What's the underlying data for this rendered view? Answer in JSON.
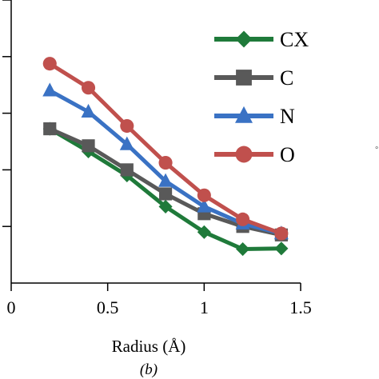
{
  "chart_data": {
    "type": "line",
    "xlabel": "Radius (Å)",
    "sublabel": "(b)",
    "x_ticks": [
      "0",
      "0.5",
      "1",
      "1.5"
    ],
    "xlim": [
      0,
      1.5
    ],
    "ylim": [
      0,
      1
    ],
    "x": [
      0.2,
      0.4,
      0.6,
      0.8,
      1.0,
      1.2,
      1.4
    ],
    "legend_position": "top-right",
    "series": [
      {
        "name": "CX",
        "marker": "diamond",
        "color": "#1f7a3a",
        "values": [
          0.545,
          0.465,
          0.38,
          0.27,
          0.18,
          0.12,
          0.122
        ]
      },
      {
        "name": "C",
        "marker": "square",
        "color": "#595959",
        "values": [
          0.545,
          0.485,
          0.4,
          0.315,
          0.245,
          0.2,
          0.17
        ]
      },
      {
        "name": "N",
        "marker": "triangle",
        "color": "#3a72c4",
        "values": [
          0.68,
          0.605,
          0.49,
          0.36,
          0.27,
          0.21,
          0.175
        ]
      },
      {
        "name": "O",
        "marker": "circle",
        "color": "#c0504d",
        "values": [
          0.775,
          0.69,
          0.555,
          0.425,
          0.31,
          0.225,
          0.175
        ]
      }
    ]
  }
}
